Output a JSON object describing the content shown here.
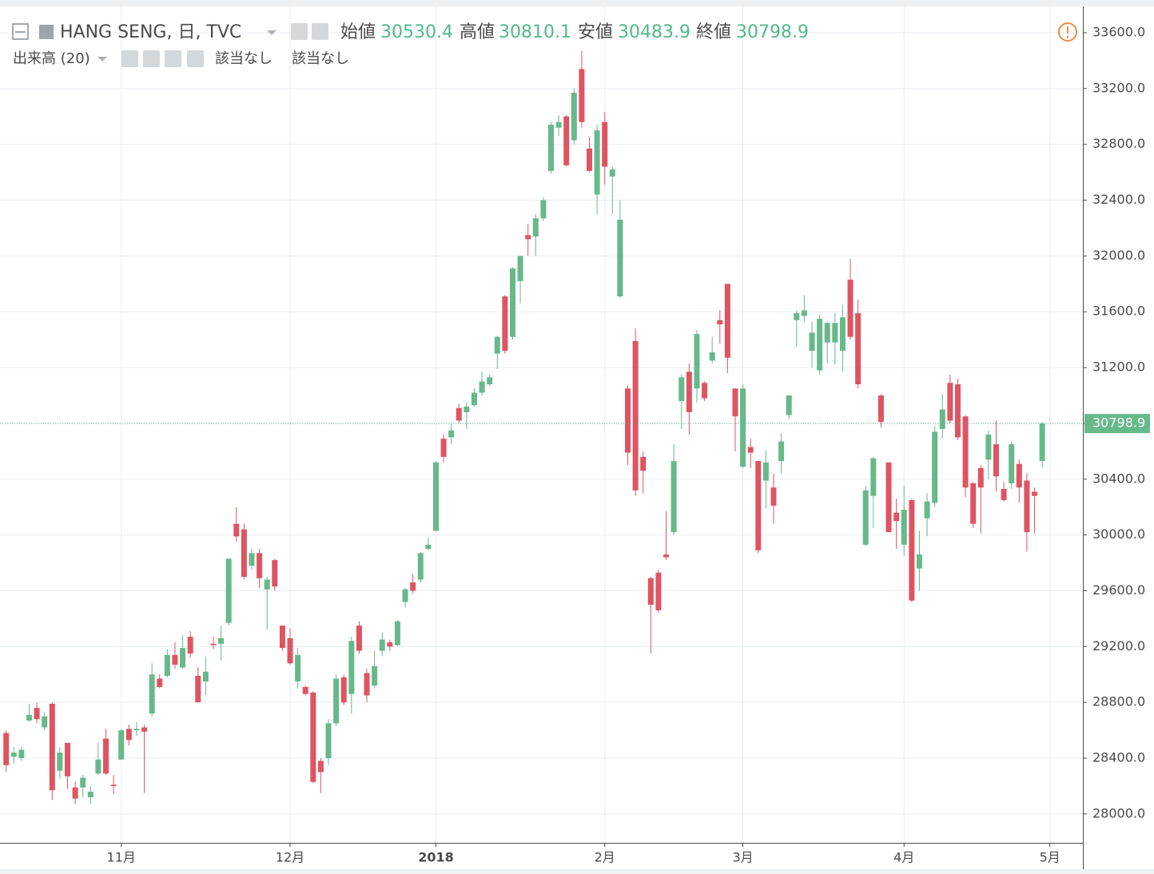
{
  "chart_data": {
    "type": "candlestick",
    "title": "HANG SENG, 日, TVC",
    "ohlc_labels": [
      "始値",
      "高値",
      "安値",
      "終値"
    ],
    "volume_label": "出来高 (20)",
    "indicator_values": [
      "該当なし",
      "該当なし"
    ],
    "up_color": "#67b88a",
    "down_color": "#de5462",
    "ylim": [
      27793,
      33789
    ],
    "yticks": [
      {
        "value": 28000,
        "label": "28000.0"
      },
      {
        "value": 28400,
        "label": "28400.0"
      },
      {
        "value": 28800,
        "label": "28800.0"
      },
      {
        "value": 29200,
        "label": "29200.0"
      },
      {
        "value": 29600,
        "label": "29600.0"
      },
      {
        "value": 30000,
        "label": "30000.0"
      },
      {
        "value": 30400,
        "label": "30400.0"
      },
      {
        "value": 30800,
        "label": "30800.0"
      },
      {
        "value": 31200,
        "label": "31200.0"
      },
      {
        "value": 31600,
        "label": "31600.0"
      },
      {
        "value": 32000,
        "label": "32000.0"
      },
      {
        "value": 32400,
        "label": "32400.0"
      },
      {
        "value": 32800,
        "label": "32800.0"
      },
      {
        "value": 33200,
        "label": "33200.0"
      },
      {
        "value": 33600,
        "label": "33600.0"
      }
    ],
    "xlim": [
      -0.8,
      140.3
    ],
    "xticks": [
      {
        "value": 15,
        "label": "11月"
      },
      {
        "value": 37,
        "label": "12月"
      },
      {
        "value": 56,
        "label": "2018"
      },
      {
        "value": 78,
        "label": "2月"
      },
      {
        "value": 96,
        "label": "3月"
      },
      {
        "value": 117,
        "label": "4月"
      },
      {
        "value": 136,
        "label": "5月"
      }
    ],
    "grid": true,
    "open": [
      28580,
      28410,
      28400,
      28670,
      28760,
      28620,
      28790,
      28310,
      28510,
      28190,
      28190,
      28120,
      28290,
      28540,
      28210,
      28390,
      28610,
      28600,
      28620,
      28720,
      28970,
      28990,
      29140,
      29050,
      29270,
      28990,
      28950,
      29220,
      29220,
      29370,
      30080,
      30040,
      29780,
      29870,
      29610,
      29820,
      29350,
      29260,
      28950,
      28910,
      28870,
      28380,
      28400,
      28650,
      28980,
      28860,
      29350,
      29010,
      28920,
      29170,
      29230,
      29210,
      29520,
      29660,
      29680,
      29900,
      30030,
      30690,
      30700,
      30910,
      30880,
      30930,
      31020,
      31080,
      31300,
      31710,
      31420,
      31820,
      32150,
      32140,
      32270,
      32610,
      32920,
      33000,
      32830,
      33340,
      32770,
      32440,
      32960,
      32570,
      31710,
      31050,
      31390,
      30560,
      29690,
      29730,
      29860,
      30020,
      30960,
      31170,
      31050,
      31090,
      31250,
      31540,
      31800,
      31050,
      30490,
      30630,
      30530,
      30390,
      30340,
      30530,
      30860,
      31540,
      31570,
      31320,
      31180,
      31380,
      31380,
      31320,
      31830,
      31590,
      29930,
      30280,
      31000,
      30520,
      30160,
      29930,
      30250,
      29760,
      30120,
      30230,
      30760,
      31090,
      31080,
      30850,
      30370,
      30480,
      30540,
      30650,
      30330,
      30370,
      30510,
      30390,
      30310,
      30530.4
    ],
    "high": [
      28600,
      28480,
      28480,
      28790,
      28800,
      28730,
      28800,
      28480,
      28510,
      28230,
      28280,
      28200,
      28510,
      28610,
      28280,
      28610,
      28640,
      28660,
      28640,
      29080,
      29000,
      29180,
      29230,
      29280,
      29310,
      29050,
      29130,
      29270,
      29350,
      29830,
      30200,
      30080,
      29900,
      29900,
      29700,
      29830,
      29350,
      29330,
      29190,
      28920,
      28880,
      28400,
      28680,
      29000,
      29000,
      29270,
      29380,
      29040,
      29170,
      29300,
      29250,
      29390,
      29620,
      29720,
      29880,
      29980,
      30530,
      30720,
      30800,
      30940,
      30950,
      31050,
      31170,
      31150,
      31430,
      31720,
      31920,
      32000,
      32230,
      32300,
      32420,
      32960,
      33010,
      33010,
      33200,
      33470,
      32850,
      32940,
      33030,
      32640,
      32400,
      31070,
      31480,
      30600,
      29700,
      29750,
      30170,
      30650,
      31150,
      31230,
      31470,
      31100,
      31420,
      31610,
      31800,
      31050,
      31080,
      30690,
      30530,
      30610,
      30440,
      30730,
      31000,
      31610,
      31720,
      31530,
      31580,
      31530,
      31590,
      31650,
      31980,
      31690,
      30350,
      30560,
      31010,
      30520,
      30260,
      30350,
      30260,
      30030,
      30300,
      30780,
      31010,
      31150,
      31120,
      30860,
      30380,
      30500,
      30750,
      30820,
      30380,
      30670,
      30540,
      30440,
      30340,
      30810.1
    ],
    "low": [
      28300,
      28360,
      28380,
      28660,
      28650,
      28600,
      28100,
      28250,
      28180,
      28070,
      28120,
      28070,
      28280,
      28280,
      28140,
      28390,
      28490,
      28560,
      28150,
      28700,
      28900,
      28980,
      29040,
      29040,
      29120,
      28800,
      28850,
      29180,
      29100,
      29350,
      29950,
      29680,
      29750,
      29620,
      29320,
      29600,
      29170,
      29070,
      28900,
      28850,
      28220,
      28150,
      28350,
      28630,
      28780,
      28720,
      29150,
      28800,
      28900,
      29130,
      29170,
      29200,
      29480,
      29580,
      29660,
      29890,
      30030,
      30520,
      30650,
      30800,
      30760,
      30920,
      31000,
      31070,
      31190,
      31300,
      31400,
      31660,
      32000,
      32000,
      32250,
      32590,
      32860,
      32640,
      32800,
      32920,
      32600,
      32300,
      32510,
      32300,
      31700,
      30500,
      30280,
      30300,
      29150,
      29440,
      29820,
      30000,
      30760,
      30720,
      30950,
      30960,
      31230,
      31370,
      31160,
      30600,
      30480,
      30480,
      29870,
      30190,
      30080,
      30440,
      30830,
      31350,
      31530,
      31200,
      31150,
      31230,
      31220,
      31170,
      31400,
      31050,
      29920,
      30050,
      30770,
      30020,
      29900,
      29850,
      29520,
      29600,
      29990,
      30200,
      30690,
      30800,
      30680,
      30270,
      30050,
      30010,
      30400,
      30310,
      30240,
      30330,
      30230,
      29880,
      30010,
      30483.9
    ],
    "close": [
      28350,
      28440,
      28460,
      28710,
      28680,
      28700,
      28170,
      28440,
      28270,
      28110,
      28260,
      28160,
      28390,
      28290,
      28200,
      28600,
      28530,
      28610,
      28590,
      29000,
      28910,
      29140,
      29070,
      29190,
      29150,
      28800,
      29020,
      29210,
      29260,
      29830,
      29990,
      29700,
      29870,
      29690,
      29680,
      29630,
      29190,
      29080,
      29140,
      28860,
      28230,
      28300,
      28650,
      28970,
      28800,
      29240,
      29170,
      28850,
      29060,
      29250,
      29200,
      29380,
      29610,
      29600,
      29870,
      29930,
      30520,
      30560,
      30750,
      30820,
      30920,
      31020,
      31100,
      31130,
      31420,
      31320,
      31910,
      32000,
      32120,
      32270,
      32400,
      32940,
      32960,
      32650,
      33170,
      32960,
      32610,
      32900,
      32640,
      32620,
      32260,
      30590,
      30320,
      30460,
      29500,
      29460,
      29840,
      30530,
      31130,
      30880,
      31440,
      30980,
      31310,
      31510,
      31270,
      30850,
      31050,
      30590,
      29890,
      30520,
      30210,
      30670,
      31000,
      31590,
      31610,
      31450,
      31550,
      31520,
      31520,
      31560,
      31420,
      31080,
      30320,
      30550,
      30810,
      30020,
      30100,
      30180,
      29530,
      29860,
      30240,
      30740,
      30900,
      30820,
      30700,
      30340,
      30080,
      30340,
      30720,
      30420,
      30250,
      30650,
      30340,
      30020,
      30280,
      30798.9
    ]
  }
}
